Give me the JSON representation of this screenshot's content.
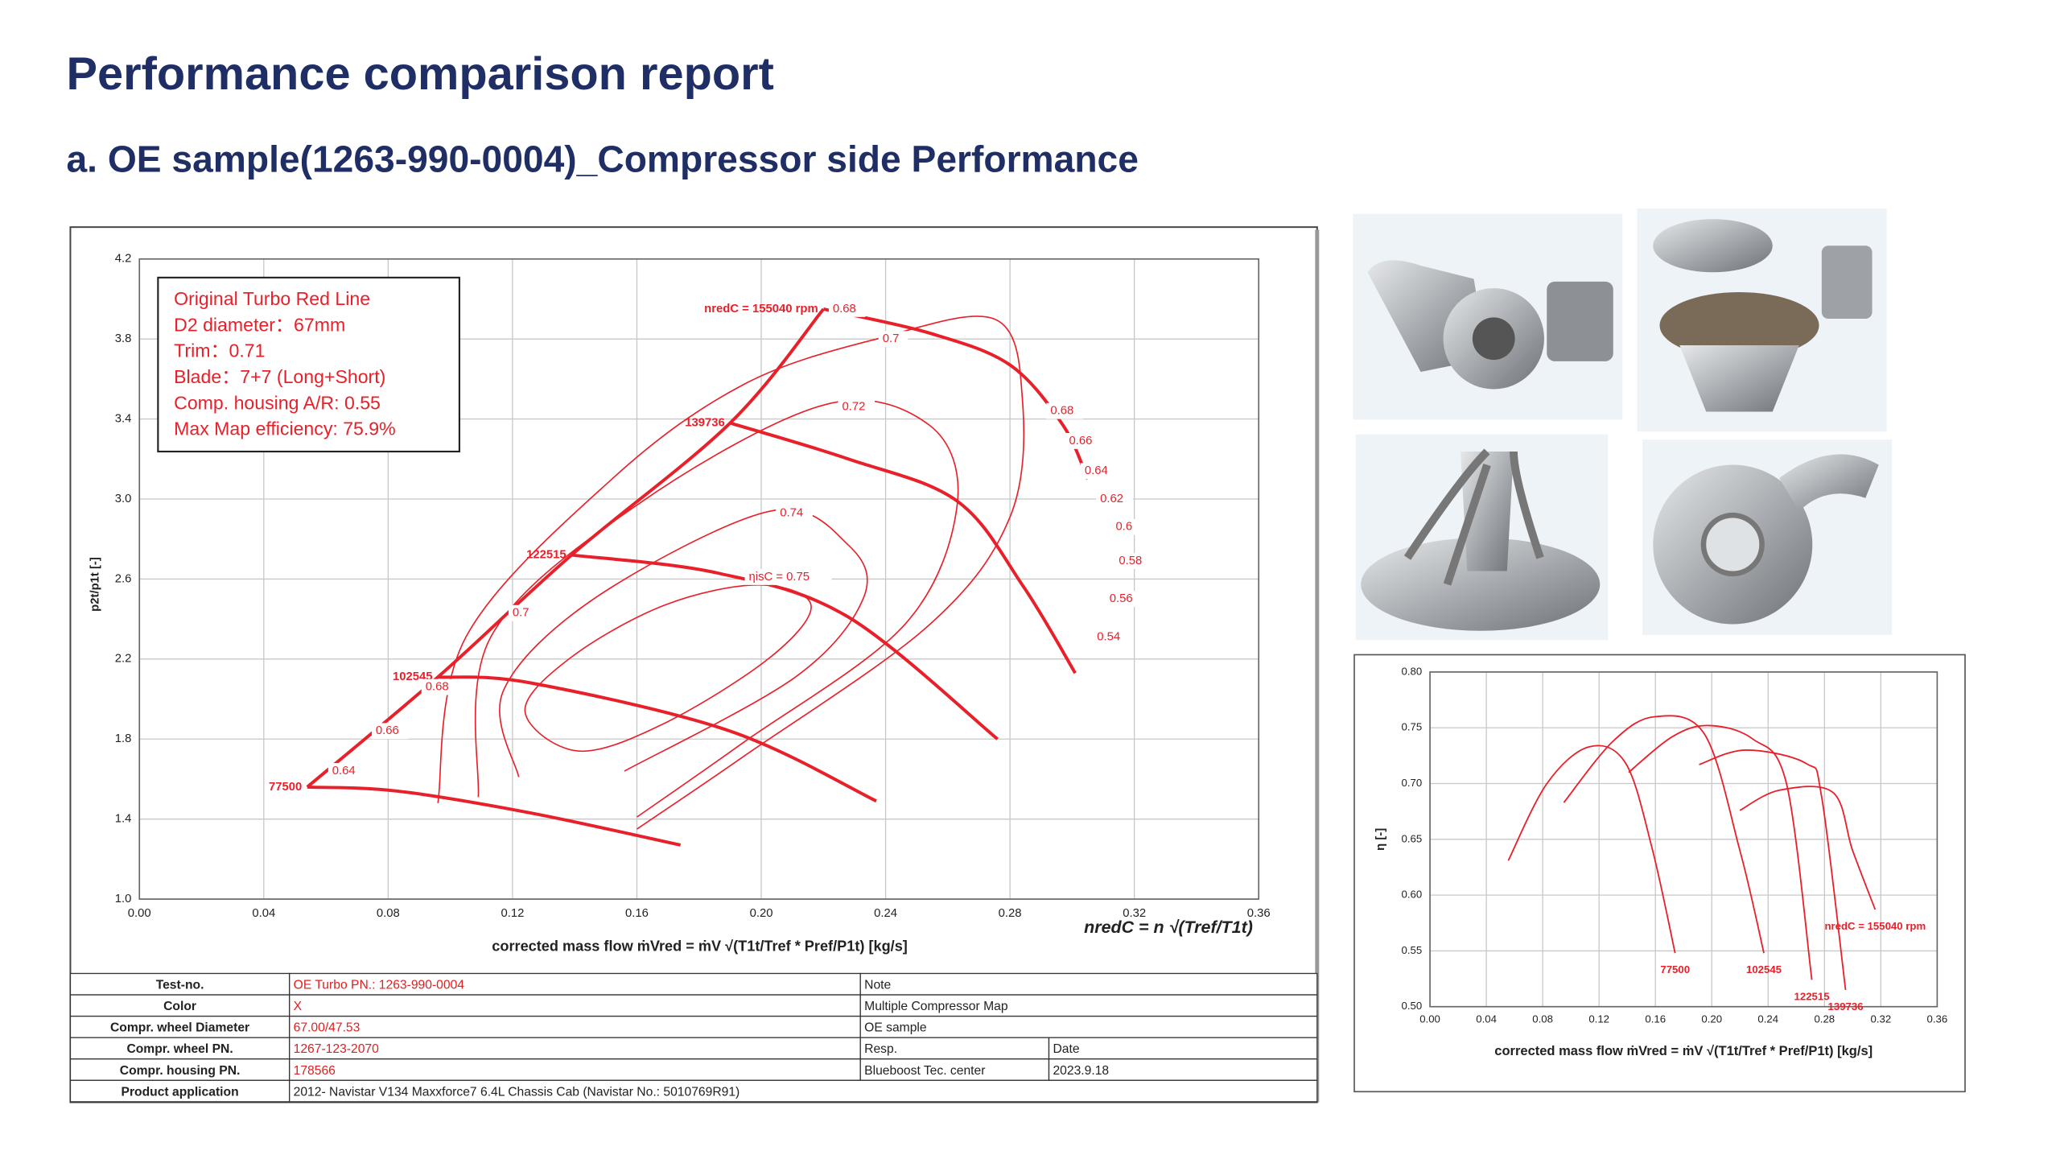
{
  "header": {
    "title": "Performance comparison report",
    "subtitle": "a. OE sample(1263-990-0004)_Compressor side Performance"
  },
  "chart_data": [
    {
      "type": "line",
      "xlabel": "corrected mass flow   ṁVred = ṁV √(T1t/Tref * Pref/P1t)  [kg/s]",
      "ylabel": "p2t/p1t [-]",
      "speed_formula": "nredC = n √(Tref/T1t)",
      "xlim": [
        0,
        0.36
      ],
      "xticks": [
        {
          "value": 0,
          "label": "0.00"
        },
        0.04,
        0.08,
        0.12,
        0.16,
        {
          "value": 0.2,
          "label": "0.20"
        },
        0.24,
        0.28,
        0.32,
        0.36
      ],
      "ylim": [
        1.0,
        4.2
      ],
      "yticks": [
        {
          "value": 1,
          "label": "1.0"
        },
        1.4,
        1.8,
        2.2,
        2.6,
        {
          "value": 3,
          "label": "3.0"
        },
        3.4,
        3.8,
        4.2
      ],
      "grid": true,
      "series": [
        {
          "name": "77500",
          "color": "#e8202a",
          "x": [
            0.054,
            0.083,
            0.126,
            0.174
          ],
          "values": [
            1.56,
            1.54,
            1.43,
            1.27
          ]
        },
        {
          "name": "102545",
          "color": "#e8202a",
          "x": [
            0.096,
            0.126,
            0.19,
            0.237
          ],
          "values": [
            2.11,
            2.08,
            1.84,
            1.49
          ]
        },
        {
          "name": "122515",
          "color": "#e8202a",
          "x": [
            0.139,
            0.186,
            0.228,
            0.276
          ],
          "values": [
            2.72,
            2.63,
            2.41,
            1.8
          ]
        },
        {
          "name": "139736",
          "color": "#e8202a",
          "x": [
            0.19,
            0.228,
            0.263,
            0.284,
            0.301
          ],
          "values": [
            3.38,
            3.2,
            2.99,
            2.57,
            2.13
          ]
        },
        {
          "name": "nredC = 155040 rpm",
          "color": "#e8202a",
          "x": [
            0.22,
            0.254,
            0.28,
            0.297,
            0.305
          ],
          "values": [
            3.95,
            3.83,
            3.67,
            3.37,
            3.1
          ]
        }
      ],
      "surge_line": {
        "color": "#e8202a",
        "x": [
          0.054,
          0.096,
          0.139,
          0.19,
          0.22
        ],
        "values": [
          1.56,
          2.11,
          2.72,
          3.38,
          3.95
        ]
      },
      "efficiency_contours": [
        {
          "color": "#e8202a",
          "closed": true,
          "x": [
            0.141,
            0.124,
            0.139,
            0.169,
            0.199,
            0.216,
            0.203,
            0.169
          ],
          "values": [
            1.74,
            1.94,
            2.21,
            2.47,
            2.57,
            2.47,
            2.21,
            1.88
          ]
        },
        {
          "color": "#e8202a",
          "closed": false,
          "x": [
            0.122,
            0.117,
            0.147,
            0.203,
            0.228,
            0.233,
            0.211,
            0.156
          ],
          "values": [
            1.61,
            2.04,
            2.51,
            2.94,
            2.77,
            2.51,
            2.11,
            1.64
          ]
        },
        {
          "color": "#e8202a",
          "closed": false,
          "x": [
            0.109,
            0.113,
            0.16,
            0.22,
            0.254,
            0.263,
            0.246,
            0.194,
            0.16
          ],
          "values": [
            1.51,
            2.31,
            2.97,
            3.47,
            3.37,
            2.97,
            2.37,
            1.78,
            1.41
          ]
        },
        {
          "color": "#e8202a",
          "closed": false,
          "x": [
            0.096,
            0.105,
            0.152,
            0.194,
            0.237,
            0.275,
            0.284,
            0.28,
            0.254,
            0.194,
            0.16
          ],
          "values": [
            1.48,
            2.31,
            3.1,
            3.57,
            3.8,
            3.9,
            3.5,
            2.91,
            2.37,
            1.71,
            1.35
          ]
        }
      ],
      "annotations": [
        {
          "text": "0.68",
          "x": 0.223,
          "y": 3.95
        },
        {
          "text": "0.7",
          "x": 0.239,
          "y": 3.8
        },
        {
          "text": "0.72",
          "x": 0.226,
          "y": 3.46
        },
        {
          "text": "0.74",
          "x": 0.206,
          "y": 2.93
        },
        {
          "text": "ηisC = 0.75",
          "x": 0.196,
          "y": 2.61
        },
        {
          "text": "0.7",
          "x": 0.12,
          "y": 2.43
        },
        {
          "text": "0.68",
          "x": 0.092,
          "y": 2.06
        },
        {
          "text": "0.66",
          "x": 0.076,
          "y": 1.84
        },
        {
          "text": "0.64",
          "x": 0.062,
          "y": 1.64
        },
        {
          "text": "0.68",
          "x": 0.293,
          "y": 3.44
        },
        {
          "text": "0.66",
          "x": 0.299,
          "y": 3.29
        },
        {
          "text": "0.64",
          "x": 0.304,
          "y": 3.14
        },
        {
          "text": "0.62",
          "x": 0.309,
          "y": 3.0
        },
        {
          "text": "0.6",
          "x": 0.314,
          "y": 2.86
        },
        {
          "text": "0.58",
          "x": 0.315,
          "y": 2.69
        },
        {
          "text": "0.56",
          "x": 0.312,
          "y": 2.5
        },
        {
          "text": "0.54",
          "x": 0.308,
          "y": 2.31
        }
      ],
      "info_box": [
        "Original Turbo Red Line",
        "D2 diameter：67mm",
        "Trim：0.71",
        "Blade：7+7 (Long+Short)",
        "Comp. housing A/R: 0.55",
        "Max Map efficiency: 75.9%"
      ]
    },
    {
      "type": "line",
      "xlabel": "corrected mass flow   ṁVred = ṁV √(T1t/Tref * Pref/P1t)  [kg/s]",
      "ylabel": "η [-]",
      "xlim": [
        0,
        0.36
      ],
      "xticks": [
        {
          "value": 0,
          "label": "0.00"
        },
        0.04,
        0.08,
        0.12,
        0.16,
        {
          "value": 0.2,
          "label": "0.20"
        },
        0.24,
        0.28,
        0.32,
        0.36
      ],
      "ylim": [
        0.5,
        0.8
      ],
      "yticks": [
        {
          "value": 0.5,
          "label": "0.50"
        },
        0.55,
        {
          "value": 0.6,
          "label": "0.60"
        },
        0.65,
        {
          "value": 0.7,
          "label": "0.70"
        },
        0.75,
        {
          "value": 0.8,
          "label": "0.80"
        }
      ],
      "grid": true,
      "series": [
        {
          "name": "77500",
          "color": "#e8202a",
          "x": [
            0.0556,
            0.083,
            0.113,
            0.139,
            0.158,
            0.174
          ],
          "values": [
            0.631,
            0.7,
            0.733,
            0.718,
            0.64,
            0.548
          ]
        },
        {
          "name": "102545",
          "color": "#e8202a",
          "x": [
            0.095,
            0.13,
            0.16,
            0.195,
            0.22,
            0.237
          ],
          "values": [
            0.683,
            0.738,
            0.76,
            0.744,
            0.64,
            0.548
          ]
        },
        {
          "name": "122515",
          "color": "#e8202a",
          "x": [
            0.141,
            0.172,
            0.198,
            0.229,
            0.253,
            0.271
          ],
          "values": [
            0.71,
            0.742,
            0.752,
            0.74,
            0.7,
            0.524
          ]
        },
        {
          "name": "139736",
          "color": "#e8202a",
          "x": [
            0.191,
            0.224,
            0.267,
            0.278,
            0.295
          ],
          "values": [
            0.717,
            0.73,
            0.718,
            0.688,
            0.515
          ]
        },
        {
          "name": "nredC = 155040 rpm",
          "color": "#e8202a",
          "x": [
            0.22,
            0.248,
            0.286,
            0.3,
            0.316
          ],
          "values": [
            0.676,
            0.694,
            0.692,
            0.64,
            0.587
          ]
        }
      ]
    }
  ],
  "table": {
    "rows": [
      [
        "Test-no.",
        "OE Turbo PN.: 1263-990-0004",
        "Note"
      ],
      [
        "Color",
        "X",
        "Multiple Compressor Map"
      ],
      [
        "Compr. wheel Diameter",
        "67.00/47.53",
        "OE sample"
      ],
      [
        "Compr. wheel PN.",
        "1267-123-2070",
        "Resp.",
        "Date"
      ],
      [
        "Compr. housing PN.",
        "178566",
        "Blueboost Tec. center",
        "2023.9.18"
      ],
      [
        "Product application",
        "2012- Navistar V134 Maxxforce7 6.4L Chassis Cab (Navistar No.: 5010769R91)"
      ]
    ]
  }
}
